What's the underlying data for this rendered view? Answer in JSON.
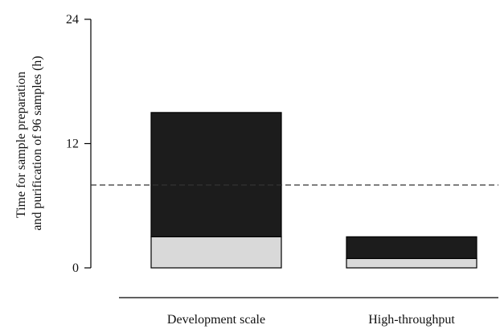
{
  "chart_data": {
    "type": "bar",
    "stacked": true,
    "title": "",
    "ylabel": "Time for sample preparation and purification of 96 samples (h)",
    "ylabel_lines": [
      "Time for sample preparation",
      "and purification of 96 samples (h)"
    ],
    "xlabel": "",
    "ylim": [
      0,
      24
    ],
    "yticks": [
      0,
      12,
      24
    ],
    "categories": [
      "Development scale",
      "High-throughput"
    ],
    "series": [
      {
        "values": [
          3.0,
          0.9
        ],
        "color": "#d9d9d9"
      },
      {
        "values": [
          12.0,
          2.1
        ],
        "color": "#1c1c1c"
      }
    ],
    "reference_line": {
      "y": 8,
      "style": "dashed"
    },
    "grid": false,
    "legend": "none"
  },
  "colors": {
    "axis": "#000000",
    "bar_outline": "#000000",
    "reference_line": "#333333"
  }
}
